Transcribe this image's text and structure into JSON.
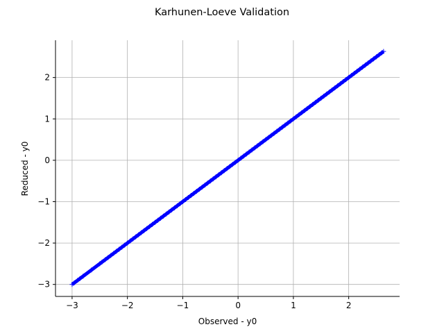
{
  "chart_data": {
    "type": "scatter",
    "title": "Karhunen-Loeve Validation",
    "xlabel": "Observed - y0",
    "ylabel": "Reduced - y0",
    "xlim": [
      -3.3,
      2.92
    ],
    "ylim": [
      -3.29,
      2.9
    ],
    "xticks": [
      -3,
      -2,
      -1,
      0,
      1,
      2
    ],
    "xtick_labels": [
      "−3",
      "−2",
      "−1",
      "0",
      "1",
      "2"
    ],
    "yticks": [
      -3,
      -2,
      -1,
      0,
      1,
      2
    ],
    "ytick_labels": [
      "−3",
      "−2",
      "−1",
      "0",
      "1",
      "2"
    ],
    "grid": true,
    "marker": "+",
    "colors": {
      "points": "#0000ff",
      "reference_line": "#ff0000",
      "grid": "#b0b0b0"
    },
    "reference_line": {
      "from": [
        -3.0,
        -3.0
      ],
      "to": [
        2.63,
        2.63
      ]
    },
    "series": [
      {
        "x": [
          -3.0,
          -2.96,
          -2.9,
          -2.86,
          -2.8,
          -2.65,
          -2.5,
          -2.46,
          -2.4,
          -2.35,
          -2.3,
          -2.25,
          -2.2,
          -2.15,
          -2.1,
          -2.05,
          -2.0,
          -1.95,
          -1.9,
          -1.85,
          -1.8,
          -1.75,
          -1.7,
          -1.65,
          -1.6,
          -1.55,
          -1.5,
          -1.45,
          -1.4,
          -1.35,
          -1.3,
          -1.25,
          -1.2,
          -1.15,
          -1.1,
          -1.05,
          -1.0,
          -0.95,
          -0.9,
          -0.85,
          -0.8,
          -0.75,
          -0.7,
          -0.65,
          -0.6,
          -0.55,
          -0.5,
          -0.45,
          -0.4,
          -0.35,
          -0.3,
          -0.25,
          -0.2,
          -0.15,
          -0.1,
          -0.05,
          0.0,
          0.05,
          0.1,
          0.15,
          0.2,
          0.25,
          0.3,
          0.35,
          0.4,
          0.45,
          0.5,
          0.55,
          0.6,
          0.65,
          0.7,
          0.75,
          0.8,
          0.85,
          0.9,
          0.95,
          1.0,
          1.05,
          1.1,
          1.15,
          1.2,
          1.25,
          1.3,
          1.35,
          1.4,
          1.45,
          1.5,
          1.55,
          1.6,
          1.65,
          1.7,
          1.75,
          1.8,
          1.85,
          1.9,
          1.95,
          2.0,
          2.05,
          2.1,
          2.15,
          2.2,
          2.25,
          2.3,
          2.35,
          2.4,
          2.45,
          2.5,
          2.55,
          2.6,
          2.63
        ],
        "y": [
          -3.0,
          -2.96,
          -2.9,
          -2.86,
          -2.8,
          -2.65,
          -2.5,
          -2.46,
          -2.4,
          -2.35,
          -2.3,
          -2.25,
          -2.2,
          -2.15,
          -2.1,
          -2.05,
          -2.0,
          -1.95,
          -1.9,
          -1.85,
          -1.8,
          -1.75,
          -1.7,
          -1.65,
          -1.6,
          -1.55,
          -1.5,
          -1.45,
          -1.4,
          -1.35,
          -1.3,
          -1.25,
          -1.2,
          -1.15,
          -1.1,
          -1.05,
          -1.0,
          -0.95,
          -0.9,
          -0.85,
          -0.8,
          -0.75,
          -0.7,
          -0.65,
          -0.6,
          -0.55,
          -0.5,
          -0.45,
          -0.4,
          -0.35,
          -0.3,
          -0.25,
          -0.2,
          -0.15,
          -0.1,
          -0.05,
          0.0,
          0.05,
          0.1,
          0.15,
          0.2,
          0.25,
          0.3,
          0.35,
          0.4,
          0.45,
          0.5,
          0.55,
          0.6,
          0.65,
          0.7,
          0.75,
          0.8,
          0.85,
          0.9,
          0.95,
          1.0,
          1.05,
          1.1,
          1.15,
          1.2,
          1.25,
          1.3,
          1.35,
          1.4,
          1.45,
          1.5,
          1.55,
          1.6,
          1.65,
          1.7,
          1.75,
          1.8,
          1.85,
          1.9,
          1.95,
          2.0,
          2.05,
          2.1,
          2.15,
          2.2,
          2.25,
          2.3,
          2.35,
          2.4,
          2.45,
          2.5,
          2.55,
          2.6,
          2.63
        ]
      }
    ]
  }
}
